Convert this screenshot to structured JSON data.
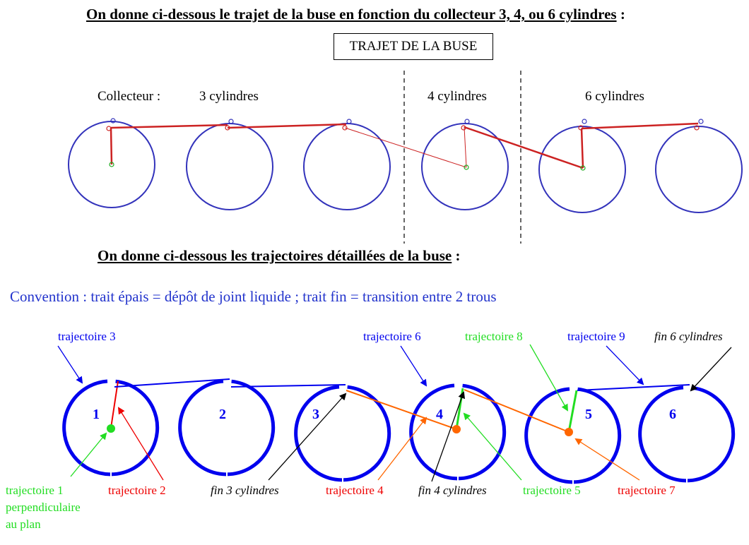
{
  "heading_top": {
    "text": "On donne ci-dessous le trajet de la buse en fonction du collecteur 3, 4, ou 6 cylindres",
    "suffix": ":"
  },
  "box_title": "TRAJET DE LA BUSE",
  "top_labels": {
    "collecteur": "Collecteur :",
    "cyl3": "3 cylindres",
    "cyl4": "4 cylindres",
    "cyl6": "6 cylindres"
  },
  "heading_bottom": {
    "text": "On donne ci-dessous les trajectoires détaillées de la buse",
    "suffix": ":"
  },
  "convention": "Convention : trait épais = dépôt de joint liquide ; trait fin = transition entre 2 trous",
  "circle_numbers": [
    "1",
    "2",
    "3",
    "4",
    "5",
    "6"
  ],
  "annotations": {
    "traj1_line1": "trajectoire 1",
    "traj1_line2": "perpendiculaire",
    "traj1_line3": "au plan",
    "traj2": "trajectoire 2",
    "traj3": "trajectoire 3",
    "traj4": "trajectoire 4",
    "traj5": "trajectoire 5",
    "traj6": "trajectoire 6",
    "traj7": "trajectoire 7",
    "traj8": "trajectoire 8",
    "traj9": "trajectoire 9",
    "fin3": "fin 3 cylindres",
    "fin4": "fin 4 cylindres",
    "fin6": "fin 6 cylindres"
  },
  "colors": {
    "blue": "#0000ee",
    "red": "#ee0000",
    "green": "#22dd22",
    "orange": "#ff6600",
    "black": "#000000",
    "top_circle": "#3333bb",
    "top_path": "#cc2222"
  }
}
